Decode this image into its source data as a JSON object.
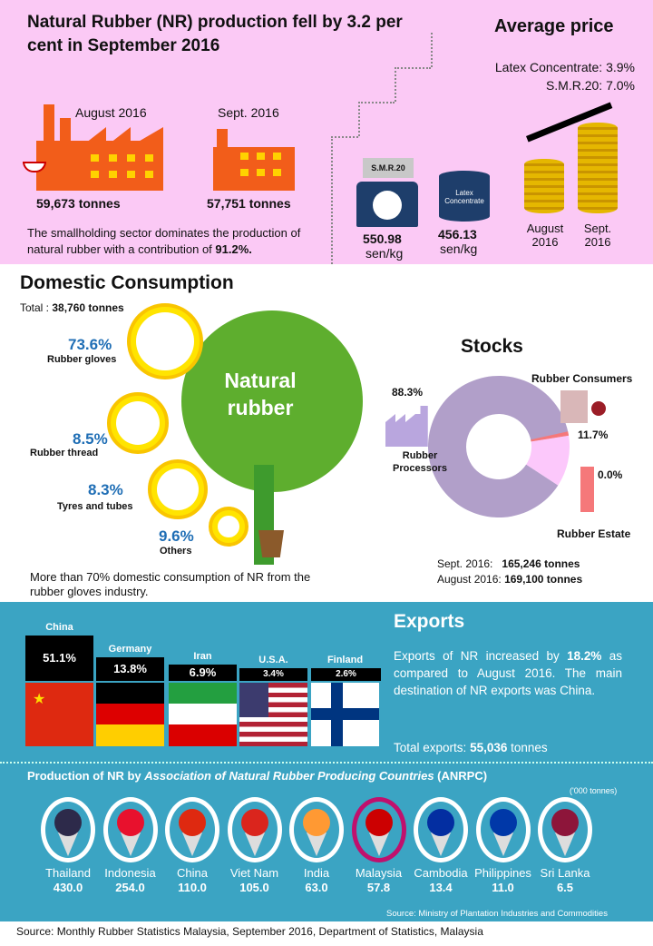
{
  "header": {
    "title": "Natural Rubber (NR) production fell by 3.2 per cent in September 2016",
    "avg_price_title": "Average price"
  },
  "production": {
    "aug_label": "August 2016",
    "aug_value": "59,673 tonnes",
    "sep_label": "Sept. 2016",
    "sep_value": "57,751 tonnes",
    "note": "The smallholding sector dominates the production of natural rubber with a contribution of",
    "note_value": "91.2%."
  },
  "price": {
    "smr_tag": "S.M.R.20",
    "smr_value": "550.98",
    "smr_unit": "sen/kg",
    "latex_tag": "Latex Concentrate",
    "latex_value": "456.13",
    "latex_unit": "sen/kg",
    "latex_change": "Latex Concentrate: 3.9%",
    "smr_change": "S.M.R.20: 7.0%",
    "coin_aug": "August 2016",
    "coin_sep": "Sept. 2016"
  },
  "domestic": {
    "title": "Domestic Consumption",
    "total_label": "Total :",
    "total_value": "38,760 tonnes",
    "tree_label": "Natural rubber",
    "note": "More than 70% domestic consumption of NR from the rubber gloves industry."
  },
  "stocks_text": {
    "title": "Stocks",
    "sep_label": "Sept. 2016:",
    "sep_value": "165,246  tonnes",
    "aug_label": "August 2016:",
    "aug_value": "169,100  tonnes"
  },
  "exports_text": {
    "title": "Exports",
    "desc_a": "Exports of NR increased by",
    "desc_b": "18.2%",
    "desc_c": "as compared to August 2016. The main destination of NR exports was China.",
    "total_label": "Total exports:",
    "total_value": "55,036",
    "total_unit": "tonnes"
  },
  "anrpc_text": {
    "title_a": "Production of NR by",
    "title_b": "Association of Natural Rubber Producing Countries",
    "title_c": "(ANRPC)",
    "unit": "('000 tonnes)",
    "source": "Source: Ministry of Plantation Industries and Commodities"
  },
  "footer": {
    "source": "Source: Monthly Rubber Statistics Malaysia, September 2016, Department of Statistics, Malaysia"
  },
  "colors": {
    "pink": "#fbc9f5",
    "blue": "#3ba4c3",
    "factory": "#f25d1a",
    "processors": "#b19fc9",
    "consumers": "#fcc8fb",
    "estate": "#f5787a",
    "highlight": "#c0106d"
  },
  "chart_data": [
    {
      "type": "pie",
      "title": "Stocks",
      "labels": [
        "Rubber Processors",
        "Rubber Consumers",
        "Rubber Estate"
      ],
      "values": [
        88.3,
        11.7,
        0.0
      ],
      "value_labels": [
        "88.3%",
        "11.7%",
        "0.0%"
      ]
    },
    {
      "type": "bar",
      "title": "Domestic Consumption",
      "categories": [
        "Rubber gloves",
        "Rubber thread",
        "Tyres and tubes",
        "Others"
      ],
      "values": [
        73.6,
        8.5,
        8.3,
        9.6
      ],
      "value_labels": [
        "73.6%",
        "8.5%",
        "8.3%",
        "9.6%"
      ]
    },
    {
      "type": "bar",
      "title": "Exports",
      "categories": [
        "China",
        "Germany",
        "Iran",
        "U.S.A.",
        "Finland"
      ],
      "values": [
        51.1,
        13.8,
        6.9,
        3.4,
        2.6
      ],
      "value_labels": [
        "51.1%",
        "13.8%",
        "6.9%",
        "3.4%",
        "2.6%"
      ]
    },
    {
      "type": "bar",
      "title": "Production of NR by ANRPC",
      "ylabel": "('000 tonnes)",
      "categories": [
        "Thailand",
        "Indonesia",
        "China",
        "Viet Nam",
        "India",
        "Malaysia",
        "Cambodia",
        "Philippines",
        "Sri Lanka"
      ],
      "values": [
        430.0,
        254.0,
        110.0,
        105.0,
        63.0,
        57.8,
        13.4,
        11.0,
        6.5
      ],
      "value_labels": [
        "430.0",
        "254.0",
        "110.0",
        "105.0",
        "63.0",
        "57.8",
        "13.4",
        "11.0",
        "6.5"
      ]
    }
  ]
}
